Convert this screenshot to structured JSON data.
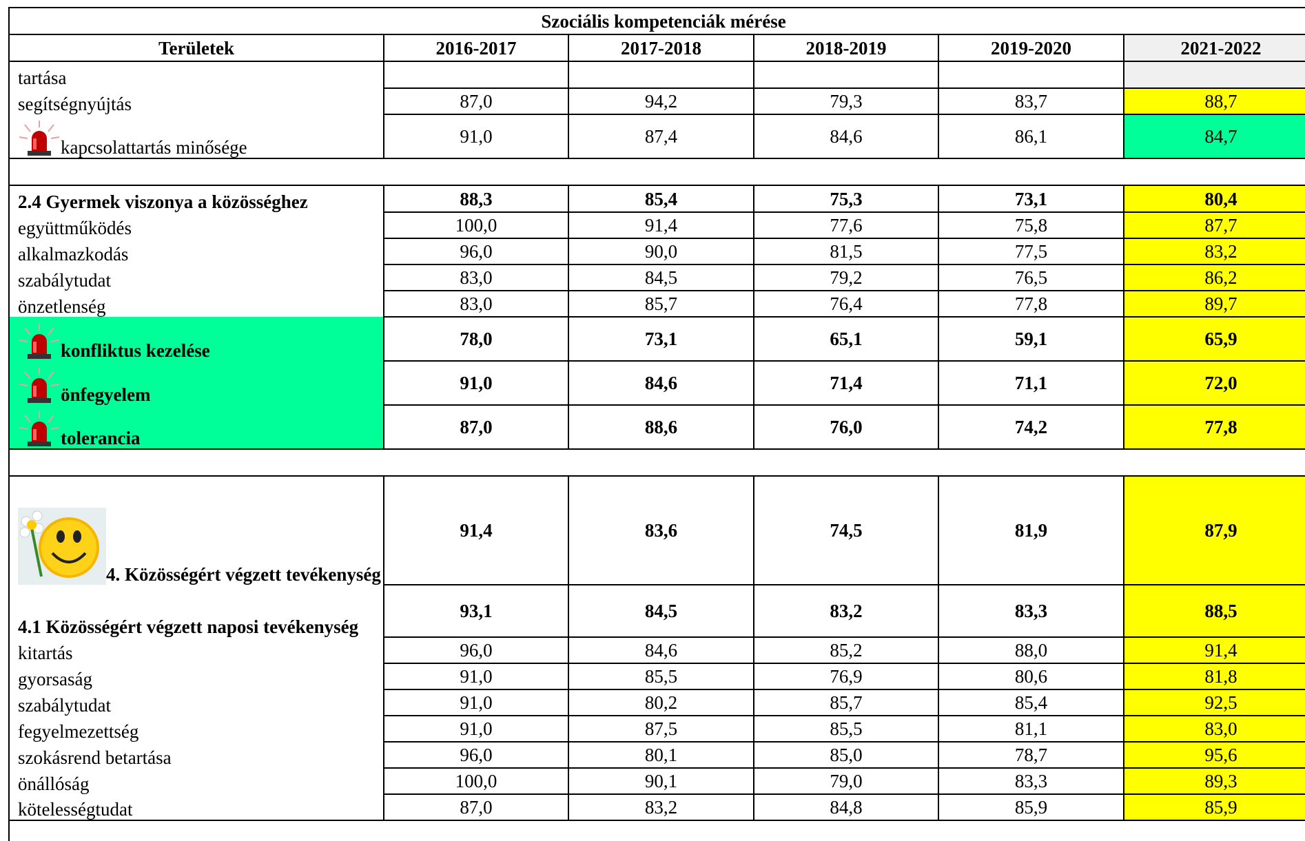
{
  "header": {
    "title": "Szociális kompetenciák mérése",
    "columns": [
      "Területek",
      "2016-2017",
      "2017-2018",
      "2018-2019",
      "2019-2020",
      "2021-2022"
    ]
  },
  "table": {
    "rows": [
      {
        "label": "tartása"
      },
      {
        "label": "segítségnyújtás",
        "values": [
          "87,0",
          "94,2",
          "79,3",
          "83,7",
          "88,7"
        ]
      },
      {
        "label": "kapcsolattartás minősége",
        "values": [
          "91,0",
          "87,4",
          "84,6",
          "86,1",
          "84,7"
        ]
      },
      {
        "label": "2.4 Gyermek viszonya a közösséghez",
        "values": [
          "88,3",
          "85,4",
          "75,3",
          "73,1",
          "80,4"
        ]
      },
      {
        "label": "együttműködés",
        "values": [
          "100,0",
          "91,4",
          "77,6",
          "75,8",
          "87,7"
        ]
      },
      {
        "label": "alkalmazkodás",
        "values": [
          "96,0",
          "90,0",
          "81,5",
          "77,5",
          "83,2"
        ]
      },
      {
        "label": "szabálytudat",
        "values": [
          "83,0",
          "84,5",
          "79,2",
          "76,5",
          "86,2"
        ]
      },
      {
        "label": "önzetlenség",
        "values": [
          "83,0",
          "85,7",
          "76,4",
          "77,8",
          "89,7"
        ]
      },
      {
        "label": "konfliktus kezelése",
        "values": [
          "78,0",
          "73,1",
          "65,1",
          "59,1",
          "65,9"
        ]
      },
      {
        "label": "önfegyelem",
        "values": [
          "91,0",
          "84,6",
          "71,4",
          "71,1",
          "72,0"
        ]
      },
      {
        "label": "tolerancia",
        "values": [
          "87,0",
          "88,6",
          "76,0",
          "74,2",
          "77,8"
        ]
      },
      {
        "label": "4. Közösségért végzett tevékenység",
        "values": [
          "91,4",
          "83,6",
          "74,5",
          "81,9",
          "87,9"
        ]
      },
      {
        "label": "4.1 Közösségért végzett naposi tevékenység",
        "values": [
          "93,1",
          "84,5",
          "83,2",
          "83,3",
          "88,5"
        ]
      },
      {
        "label": "kitartás",
        "values": [
          "96,0",
          "84,6",
          "85,2",
          "88,0",
          "91,4"
        ]
      },
      {
        "label": "gyorsaság",
        "values": [
          "91,0",
          "85,5",
          "76,9",
          "80,6",
          "81,8"
        ]
      },
      {
        "label": "szabálytudat",
        "values": [
          "91,0",
          "80,2",
          "85,7",
          "85,4",
          "92,5"
        ]
      },
      {
        "label": "fegyelmezettség",
        "values": [
          "91,0",
          "87,5",
          "85,5",
          "81,1",
          "83,0"
        ]
      },
      {
        "label": "szokásrend betartása",
        "values": [
          "96,0",
          "80,1",
          "85,0",
          "78,7",
          "95,6"
        ]
      },
      {
        "label": "önállóság",
        "values": [
          "100,0",
          "90,1",
          "79,0",
          "83,3",
          "89,3"
        ]
      },
      {
        "label": "kötelességtudat",
        "values": [
          "87,0",
          "83,2",
          "84,8",
          "85,9",
          "85,9"
        ]
      }
    ]
  }
}
